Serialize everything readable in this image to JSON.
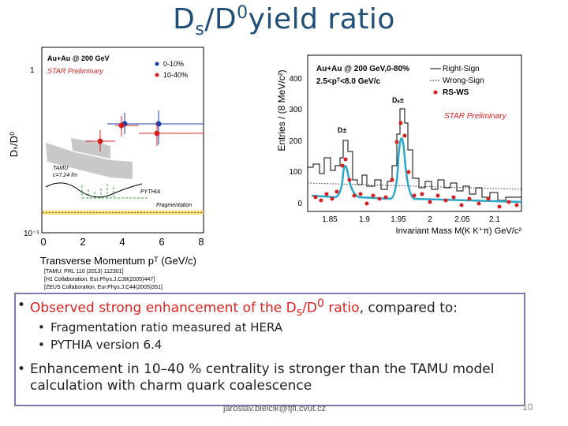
{
  "title": {
    "main": "D",
    "sub": "s",
    "slash": "/D",
    "sup": "0",
    "rest": "yield ratio"
  },
  "left_plot": {
    "collision": "Au+Au @ 200 GeV",
    "preliminary": "STAR Preliminary",
    "legend": [
      "0-10%",
      "10-40%"
    ],
    "tamu_label": "TAMU",
    "tau_label": "c=7.24 fm",
    "pythia_label": "PYTHIA",
    "frag_label": "Fragmentation",
    "y_label": "Dₛ/D⁰",
    "x_label": "Transverse Momentum pᵀ (GeV/c)",
    "y_ticks": [
      "1",
      "10⁻¹"
    ],
    "x_ticks": [
      "0",
      "2",
      "4",
      "6",
      "8"
    ]
  },
  "right_plot": {
    "header1": "Au+Au @ 200 GeV,0-80%",
    "header2": "2.5<pᵀ<8.0 GeV/c",
    "legend": [
      "Right-Sign",
      "Wrong-Sign",
      "RS-WS"
    ],
    "preliminary": "STAR Preliminary",
    "peak1": "D±",
    "peak2": "Dₛ±",
    "y_label": "Entries / (8 MeV/c²)",
    "x_label": "Invariant Mass M(K K⁺π) GeV/c²",
    "y_ticks": [
      "400",
      "300",
      "200",
      "100",
      "0"
    ],
    "x_ticks": [
      "1.85",
      "1.9",
      "1.95",
      "2",
      "2.05",
      "2.1"
    ]
  },
  "refs": [
    "[TAMU: PRL 110 (2013) 112301]",
    "[H1 Collaboration, Eur.Phys.J.C38(2005)447]",
    "[ZEUS Collaboration, Eur.Phys.J.C44(2005)351]"
  ],
  "bullets": {
    "b1_pre": "Observed strong enhancement of the D",
    "b1_sub": "s",
    "b1_mid": "/D",
    "b1_sup": "0",
    "b1_red_end": " ratio",
    "b1_post": ", compared to:",
    "sub1": "Fragmentation ratio measured at HERA",
    "sub2": "PYTHIA version 6.4",
    "b2": "Enhancement in 10–40 % centrality is stronger than the TAMU model calculation with charm quark coalescence"
  },
  "footer": "jaroslav.bielcik@fjfi.cvut.cz",
  "page_number": "10",
  "colors": {
    "title": "#1f4e79",
    "accent_red": "#e0201c",
    "box_border": "#7b7ba8"
  }
}
